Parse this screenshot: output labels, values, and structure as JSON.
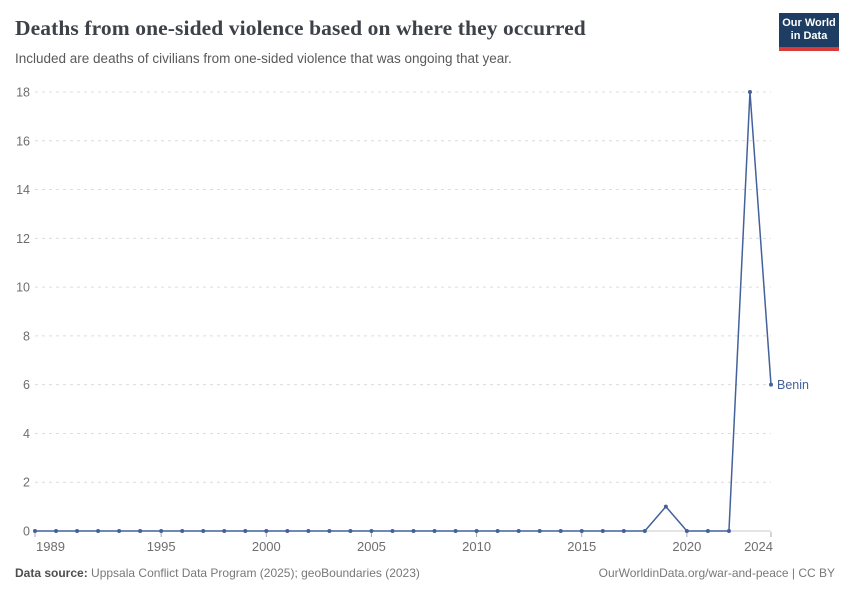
{
  "header": {
    "title": "Deaths from one-sided violence based on where they occurred",
    "subtitle": "Included are deaths of civilians from one-sided violence that was ongoing that year.",
    "logo": {
      "line1": "Our World",
      "line2": "in Data"
    }
  },
  "chart_data": {
    "type": "line",
    "title": "Deaths from one-sided violence based on where they occurred",
    "xlabel": "",
    "ylabel": "",
    "xlim": [
      1989,
      2024
    ],
    "ylim": [
      0,
      18
    ],
    "xticks": [
      1989,
      1995,
      2000,
      2005,
      2010,
      2015,
      2020,
      2024
    ],
    "yticks": [
      0,
      2,
      4,
      6,
      8,
      10,
      12,
      14,
      16,
      18
    ],
    "grid": "dashed-horizontal",
    "legend_position": "end-of-line-label",
    "x": [
      1989,
      1990,
      1991,
      1992,
      1993,
      1994,
      1995,
      1996,
      1997,
      1998,
      1999,
      2000,
      2001,
      2002,
      2003,
      2004,
      2005,
      2006,
      2007,
      2008,
      2009,
      2010,
      2011,
      2012,
      2013,
      2014,
      2015,
      2016,
      2017,
      2018,
      2019,
      2020,
      2021,
      2022,
      2023,
      2024
    ],
    "series": [
      {
        "name": "Benin",
        "color": "#44619b",
        "values": [
          0,
          0,
          0,
          0,
          0,
          0,
          0,
          0,
          0,
          0,
          0,
          0,
          0,
          0,
          0,
          0,
          0,
          0,
          0,
          0,
          0,
          0,
          0,
          0,
          0,
          0,
          0,
          0,
          0,
          0,
          1,
          0,
          0,
          0,
          18,
          6
        ]
      }
    ]
  },
  "footer": {
    "source_label": "Data source:",
    "source_value": " Uppsala Conflict Data Program (2025); geoBoundaries (2023)",
    "right_text": "OurWorldinData.org/war-and-peace | CC BY"
  },
  "colors": {
    "accent_line": "#44619b",
    "logo_bg": "#1d3d63",
    "logo_bar": "#d93b3b",
    "grid": "#dcdcdc",
    "axis": "#c8c8c8",
    "tick": "#a8a8a8",
    "tick_label": "#6e6e6e",
    "title_text": "#3d4248",
    "subtitle_text": "#595959"
  }
}
